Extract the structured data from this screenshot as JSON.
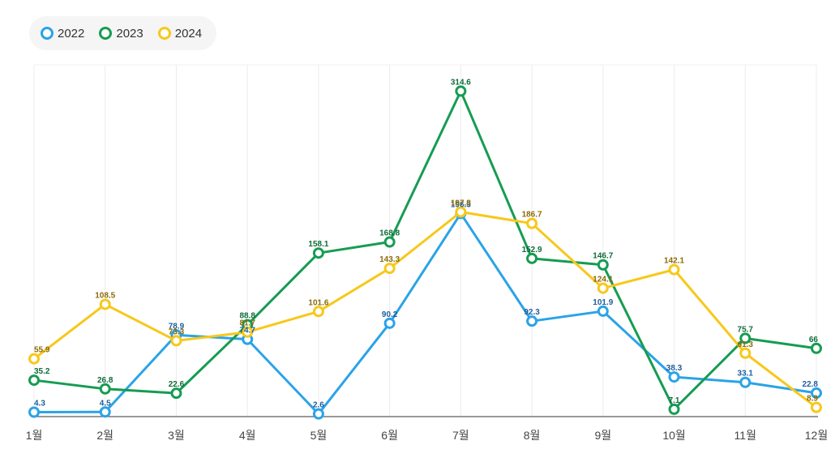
{
  "chart_data": {
    "type": "line",
    "categories": [
      "1월",
      "2월",
      "3월",
      "4월",
      "5월",
      "6월",
      "7월",
      "8월",
      "9월",
      "10월",
      "11월",
      "12월"
    ],
    "series": [
      {
        "name": "2022",
        "color": "#2aa3e8",
        "label_color": "#1d5f9a",
        "values": [
          4.3,
          4.5,
          78.9,
          74.7,
          2.6,
          90.2,
          196.3,
          92.3,
          101.9,
          38.3,
          33.1,
          22.8
        ],
        "labels": [
          "4.3",
          "4.5",
          "78.9",
          "74.7",
          "2.6",
          "90.2",
          "196.3",
          "92.3",
          "101.9",
          "38.3",
          "33.1",
          "22.8"
        ]
      },
      {
        "name": "2023",
        "color": "#169c52",
        "label_color": "#0f6b39",
        "values": [
          35.2,
          26.8,
          22.6,
          88.8,
          158.1,
          168.8,
          314.6,
          152.9,
          146.7,
          7.1,
          75.7,
          66
        ],
        "labels": [
          "35.2",
          "26.8",
          "22.6",
          "88.8",
          "158.1",
          "168.8",
          "314.6",
          "152.9",
          "146.7",
          "7.1",
          "75.7",
          "66"
        ]
      },
      {
        "name": "2024",
        "color": "#f7c81a",
        "label_color": "#8a6a0a",
        "values": [
          55.9,
          108.5,
          73.3,
          81.7,
          101.6,
          143.3,
          197.8,
          186.7,
          124.1,
          142.1,
          61.3,
          8.9
        ],
        "labels": [
          "55.9",
          "108.5",
          "73.3",
          "81.7",
          "101.6",
          "143.3",
          "197.8",
          "186.7",
          "124.1",
          "142.1",
          "61.3",
          "8.9"
        ]
      }
    ],
    "ylim": [
      0,
      340
    ],
    "grid": "vertical",
    "legend_position": "top-left"
  }
}
